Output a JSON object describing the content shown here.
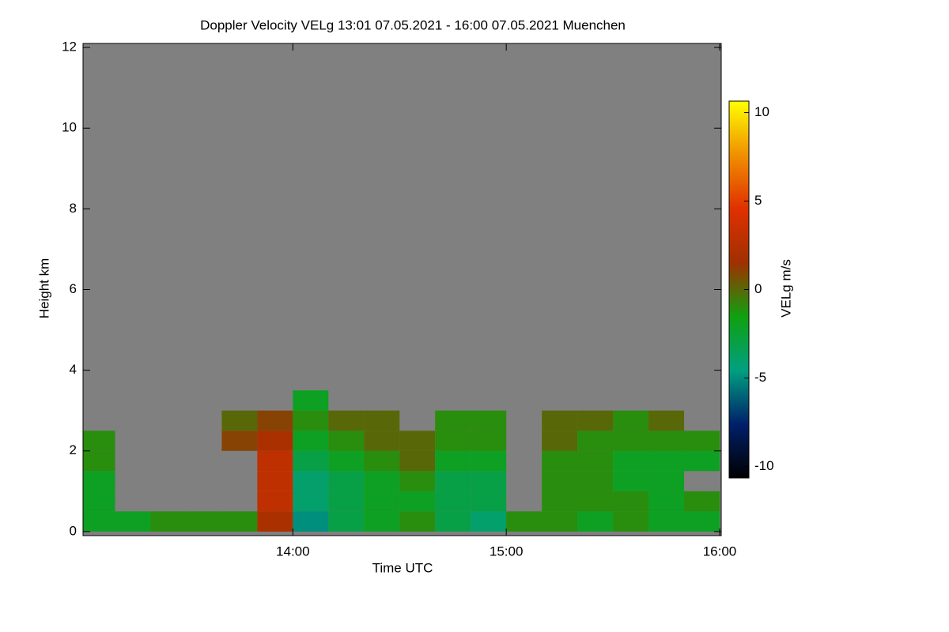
{
  "chart_data": {
    "type": "heatmap",
    "title": "Doppler Velocity VELg   13:01 07.05.2021 - 16:00 07.05.2021 Muenchen",
    "xlabel": "Time UTC",
    "ylabel": "Height km",
    "colorbar_label": "VELg m/s",
    "background": "#808080",
    "xlim": [
      13.0167,
      16.0074
    ],
    "xticks": [
      {
        "value": 14,
        "label": "14:00"
      },
      {
        "value": 15,
        "label": "15:00"
      },
      {
        "value": 16,
        "label": "16:00"
      }
    ],
    "ylim": [
      -0.1,
      12.1
    ],
    "yticks": [
      0,
      2,
      4,
      6,
      8,
      10,
      12
    ],
    "zlim": [
      -10.65,
      10.65
    ],
    "zticks": [
      -10,
      -5,
      0,
      5,
      10
    ],
    "colormap": [
      "#000000",
      "#00206a",
      "#00a080",
      "#10a010",
      "#a03000",
      "#e03000",
      "#f09000",
      "#ffff00"
    ],
    "x": [
      13.0833,
      13.25,
      13.4167,
      13.5833,
      13.75,
      13.9167,
      14.0833,
      14.25,
      14.4167,
      14.5833,
      14.75,
      14.9167,
      15.0833,
      15.25,
      15.4167,
      15.5833,
      15.75,
      15.9167
    ],
    "x_step": 0.1667,
    "y": [
      0.25,
      0.75,
      1.25,
      1.75,
      2.25,
      2.75,
      3.25
    ],
    "y_step": 0.5,
    "z": [
      [
        -2,
        -2,
        -1,
        -1,
        -1,
        2,
        -5,
        -3,
        -2,
        -1,
        -3,
        -4,
        -1,
        -1,
        -2,
        -1,
        -2,
        -2
      ],
      [
        -2,
        null,
        null,
        null,
        null,
        3,
        -4,
        -3,
        -2,
        -2,
        -3,
        -3,
        null,
        -1,
        -1,
        -1,
        -2,
        -1
      ],
      [
        -2,
        null,
        null,
        null,
        null,
        3,
        -4,
        -3,
        -2,
        -1,
        -3,
        -3,
        null,
        -1,
        -1,
        -2,
        -2,
        null
      ],
      [
        -1,
        null,
        null,
        null,
        null,
        3,
        -3,
        -2,
        -1,
        0,
        -2,
        -2,
        null,
        -1,
        -1,
        -2,
        -2,
        -2
      ],
      [
        -1,
        null,
        null,
        null,
        1,
        2,
        -2,
        -1,
        0,
        0,
        -1,
        -1,
        null,
        0,
        -1,
        -1,
        -1,
        -1
      ],
      [
        null,
        null,
        null,
        null,
        0,
        1,
        -1,
        0,
        0,
        null,
        -1,
        -1,
        null,
        0,
        0,
        -1,
        0,
        null
      ],
      [
        null,
        null,
        null,
        null,
        null,
        null,
        -2,
        null,
        null,
        null,
        null,
        null,
        null,
        null,
        null,
        null,
        null,
        null
      ]
    ]
  }
}
